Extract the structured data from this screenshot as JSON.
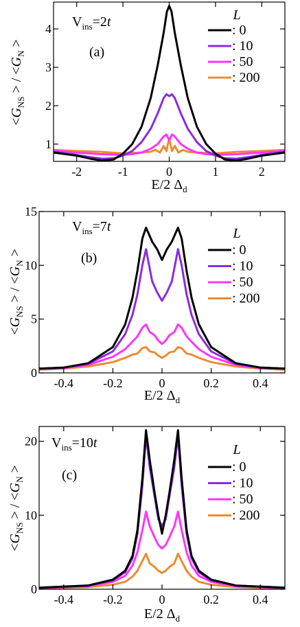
{
  "colors": {
    "L0": "#000000",
    "L10": "#8a2be2",
    "L50": "#ff33ff",
    "L200": "#ee8a30"
  },
  "ylabel": {
    "open": "<",
    "G": "G",
    "NS": "NS",
    "mid": " > / <",
    "N": "N",
    "close": " >"
  },
  "xlabel": {
    "main": "E/2 Δ",
    "sub": "d"
  },
  "legend": {
    "title": "L",
    "entries": [
      ": 0",
      ": 10",
      ": 50",
      ": 200"
    ]
  },
  "chart_data": [
    {
      "type": "line",
      "panel_label": "(a)",
      "vins": {
        "main": "V",
        "sub": "ins",
        "eq": "=2",
        "t": "t"
      },
      "xlim": [
        -2.5,
        2.5
      ],
      "ylim": [
        0.55,
        4.7
      ],
      "xticks": [
        -2,
        -1,
        0,
        1,
        2
      ],
      "xtick_labels": [
        "-2",
        "-1",
        "0",
        "1",
        "2"
      ],
      "yticks": [
        1,
        2,
        3,
        4
      ],
      "ytick_labels": [
        "1",
        "2",
        "3",
        "4"
      ],
      "series": [
        {
          "name": "0",
          "color": "#000000",
          "x": [
            -2.5,
            -2.0,
            -1.7,
            -1.45,
            -1.2,
            -1.0,
            -0.8,
            -0.6,
            -0.4,
            -0.25,
            -0.12,
            -0.05,
            0.0,
            0.05,
            0.12,
            0.25,
            0.4,
            0.6,
            0.8,
            1.0,
            1.2,
            1.45,
            1.7,
            2.0,
            2.5
          ],
          "y": [
            0.78,
            0.7,
            0.62,
            0.57,
            0.6,
            0.75,
            1.0,
            1.45,
            2.2,
            3.05,
            3.9,
            4.45,
            4.6,
            4.45,
            3.9,
            3.05,
            2.2,
            1.45,
            1.0,
            0.75,
            0.6,
            0.57,
            0.62,
            0.7,
            0.78
          ]
        },
        {
          "name": "10",
          "color": "#8a2be2",
          "x": [
            -2.5,
            -2.0,
            -1.7,
            -1.45,
            -1.2,
            -1.0,
            -0.8,
            -0.6,
            -0.4,
            -0.25,
            -0.12,
            -0.06,
            0.0,
            0.06,
            0.12,
            0.25,
            0.4,
            0.6,
            0.8,
            1.0,
            1.2,
            1.45,
            1.7,
            2.0,
            2.5
          ],
          "y": [
            0.8,
            0.72,
            0.66,
            0.62,
            0.63,
            0.7,
            0.82,
            1.05,
            1.4,
            1.8,
            2.2,
            2.3,
            2.25,
            2.3,
            2.2,
            1.8,
            1.4,
            1.05,
            0.82,
            0.7,
            0.63,
            0.62,
            0.66,
            0.72,
            0.8
          ]
        },
        {
          "name": "50",
          "color": "#ff33ff",
          "x": [
            -2.5,
            -2.0,
            -1.5,
            -1.0,
            -0.8,
            -0.6,
            -0.4,
            -0.25,
            -0.12,
            -0.06,
            0.0,
            0.06,
            0.12,
            0.25,
            0.4,
            0.6,
            0.8,
            1.0,
            1.5,
            2.0,
            2.5
          ],
          "y": [
            0.83,
            0.78,
            0.74,
            0.72,
            0.74,
            0.78,
            0.88,
            1.0,
            1.2,
            1.25,
            1.1,
            1.25,
            1.2,
            1.0,
            0.88,
            0.78,
            0.74,
            0.72,
            0.74,
            0.78,
            0.83
          ]
        },
        {
          "name": "200",
          "color": "#ee8a30",
          "x": [
            -2.5,
            -2.0,
            -1.5,
            -1.0,
            -0.6,
            -0.4,
            -0.3,
            -0.2,
            -0.12,
            -0.06,
            -0.02,
            0.0,
            0.02,
            0.06,
            0.12,
            0.2,
            0.3,
            0.4,
            0.6,
            1.0,
            1.5,
            2.0,
            2.5
          ],
          "y": [
            0.85,
            0.82,
            0.8,
            0.76,
            0.78,
            0.8,
            0.85,
            0.78,
            0.95,
            0.82,
            1.05,
            1.15,
            1.05,
            0.82,
            0.95,
            0.78,
            0.85,
            0.8,
            0.78,
            0.76,
            0.8,
            0.82,
            0.85
          ]
        }
      ]
    },
    {
      "type": "line",
      "panel_label": "(b)",
      "vins": {
        "main": "V",
        "sub": "ins",
        "eq": "=7",
        "t": "t"
      },
      "xlim": [
        -0.5,
        0.5
      ],
      "ylim": [
        0,
        15
      ],
      "xticks": [
        -0.4,
        -0.2,
        0,
        0.2,
        0.4
      ],
      "xtick_labels": [
        "-0.4",
        "-0.2",
        "0",
        "0.2",
        "0.4"
      ],
      "yticks": [
        0,
        5,
        10,
        15
      ],
      "ytick_labels": [
        "0",
        "5",
        "10",
        "15"
      ],
      "series": [
        {
          "name": "0",
          "color": "#000000",
          "x": [
            -0.5,
            -0.4,
            -0.3,
            -0.2,
            -0.15,
            -0.12,
            -0.1,
            -0.08,
            -0.065,
            -0.04,
            -0.02,
            0.0,
            0.02,
            0.04,
            0.065,
            0.08,
            0.1,
            0.12,
            0.15,
            0.2,
            0.3,
            0.4,
            0.5
          ],
          "y": [
            0.4,
            0.5,
            0.9,
            2.4,
            4.5,
            7.0,
            9.5,
            12.5,
            13.5,
            12.2,
            11.5,
            10.5,
            11.5,
            12.2,
            13.5,
            12.5,
            9.5,
            7.0,
            4.5,
            2.4,
            0.9,
            0.5,
            0.4
          ]
        },
        {
          "name": "10",
          "color": "#8a2be2",
          "x": [
            -0.5,
            -0.4,
            -0.3,
            -0.2,
            -0.15,
            -0.12,
            -0.1,
            -0.08,
            -0.065,
            -0.04,
            -0.02,
            0.0,
            0.02,
            0.04,
            0.065,
            0.08,
            0.1,
            0.12,
            0.15,
            0.2,
            0.3,
            0.4,
            0.5
          ],
          "y": [
            0.4,
            0.5,
            0.85,
            2.0,
            3.6,
            5.4,
            7.3,
            10.0,
            11.5,
            8.5,
            7.5,
            6.7,
            7.5,
            8.5,
            11.5,
            10.0,
            7.3,
            5.4,
            3.6,
            2.0,
            0.85,
            0.5,
            0.4
          ]
        },
        {
          "name": "50",
          "color": "#ff33ff",
          "x": [
            -0.5,
            -0.4,
            -0.3,
            -0.2,
            -0.15,
            -0.12,
            -0.1,
            -0.08,
            -0.065,
            -0.05,
            -0.03,
            -0.015,
            0.0,
            0.015,
            0.03,
            0.05,
            0.065,
            0.08,
            0.1,
            0.12,
            0.15,
            0.2,
            0.3,
            0.4,
            0.5
          ],
          "y": [
            0.35,
            0.45,
            0.75,
            1.5,
            2.2,
            2.9,
            3.4,
            4.2,
            4.5,
            3.8,
            3.5,
            3.0,
            2.7,
            3.0,
            3.5,
            3.8,
            4.5,
            4.2,
            3.4,
            2.9,
            2.2,
            1.5,
            0.75,
            0.45,
            0.35
          ]
        },
        {
          "name": "200",
          "color": "#ee8a30",
          "x": [
            -0.5,
            -0.4,
            -0.3,
            -0.2,
            -0.15,
            -0.12,
            -0.1,
            -0.08,
            -0.065,
            -0.05,
            -0.03,
            -0.015,
            0.0,
            0.015,
            0.03,
            0.05,
            0.065,
            0.08,
            0.1,
            0.12,
            0.15,
            0.2,
            0.3,
            0.4,
            0.5
          ],
          "y": [
            0.3,
            0.4,
            0.6,
            1.0,
            1.4,
            1.7,
            1.8,
            2.3,
            2.4,
            2.0,
            1.9,
            1.6,
            1.4,
            1.6,
            1.9,
            2.0,
            2.4,
            2.3,
            1.8,
            1.7,
            1.4,
            1.0,
            0.6,
            0.4,
            0.3
          ]
        }
      ]
    },
    {
      "type": "line",
      "panel_label": "(c)",
      "vins": {
        "main": "V",
        "sub": "ins",
        "eq": "=10",
        "t": "t"
      },
      "xlim": [
        -0.5,
        0.5
      ],
      "ylim": [
        0,
        22
      ],
      "xticks": [
        -0.4,
        -0.2,
        0,
        0.2,
        0.4
      ],
      "xtick_labels": [
        "-0.4",
        "-0.2",
        "0",
        "0.2",
        "0.4"
      ],
      "yticks": [
        0,
        10,
        20
      ],
      "ytick_labels": [
        "0",
        "10",
        "20"
      ],
      "series": [
        {
          "name": "0",
          "color": "#000000",
          "x": [
            -0.5,
            -0.3,
            -0.2,
            -0.15,
            -0.12,
            -0.1,
            -0.08,
            -0.065,
            -0.05,
            -0.03,
            -0.015,
            0.0,
            0.015,
            0.03,
            0.05,
            0.065,
            0.08,
            0.1,
            0.12,
            0.15,
            0.2,
            0.3,
            0.5
          ],
          "y": [
            0.2,
            0.5,
            1.3,
            2.5,
            4.5,
            8.0,
            15.0,
            21.5,
            17.5,
            13.0,
            10.0,
            7.5,
            10.0,
            13.0,
            17.5,
            21.5,
            15.0,
            8.0,
            4.5,
            2.5,
            1.3,
            0.5,
            0.2
          ]
        },
        {
          "name": "10",
          "color": "#8a2be2",
          "x": [
            -0.5,
            -0.3,
            -0.2,
            -0.15,
            -0.12,
            -0.1,
            -0.08,
            -0.065,
            -0.05,
            -0.03,
            -0.015,
            0.0,
            0.015,
            0.03,
            0.05,
            0.065,
            0.08,
            0.1,
            0.12,
            0.15,
            0.2,
            0.3,
            0.5
          ],
          "y": [
            0.2,
            0.5,
            1.2,
            2.3,
            4.2,
            7.5,
            14.0,
            20.8,
            16.5,
            12.5,
            9.5,
            8.5,
            9.5,
            12.5,
            16.5,
            20.8,
            14.0,
            7.5,
            4.2,
            2.3,
            1.2,
            0.5,
            0.2
          ]
        },
        {
          "name": "50",
          "color": "#ff33ff",
          "x": [
            -0.5,
            -0.3,
            -0.2,
            -0.15,
            -0.12,
            -0.1,
            -0.08,
            -0.065,
            -0.05,
            -0.03,
            -0.015,
            0.0,
            0.015,
            0.03,
            0.05,
            0.065,
            0.08,
            0.1,
            0.12,
            0.15,
            0.2,
            0.3,
            0.5
          ],
          "y": [
            0.15,
            0.4,
            1.0,
            1.8,
            3.2,
            5.0,
            8.0,
            10.5,
            8.5,
            7.0,
            6.0,
            5.5,
            6.0,
            7.0,
            8.5,
            10.5,
            8.0,
            5.0,
            3.2,
            1.8,
            1.0,
            0.4,
            0.15
          ]
        },
        {
          "name": "200",
          "color": "#ee8a30",
          "x": [
            -0.5,
            -0.3,
            -0.2,
            -0.15,
            -0.12,
            -0.1,
            -0.08,
            -0.065,
            -0.05,
            -0.03,
            -0.015,
            0.0,
            0.015,
            0.03,
            0.05,
            0.065,
            0.08,
            0.1,
            0.12,
            0.15,
            0.2,
            0.3,
            0.5
          ],
          "y": [
            0.1,
            0.3,
            0.6,
            1.0,
            1.7,
            2.5,
            3.8,
            4.8,
            3.5,
            3.0,
            2.5,
            2.2,
            2.5,
            3.0,
            3.5,
            4.8,
            3.8,
            2.5,
            1.7,
            1.0,
            0.6,
            0.3,
            0.1
          ]
        }
      ]
    }
  ]
}
